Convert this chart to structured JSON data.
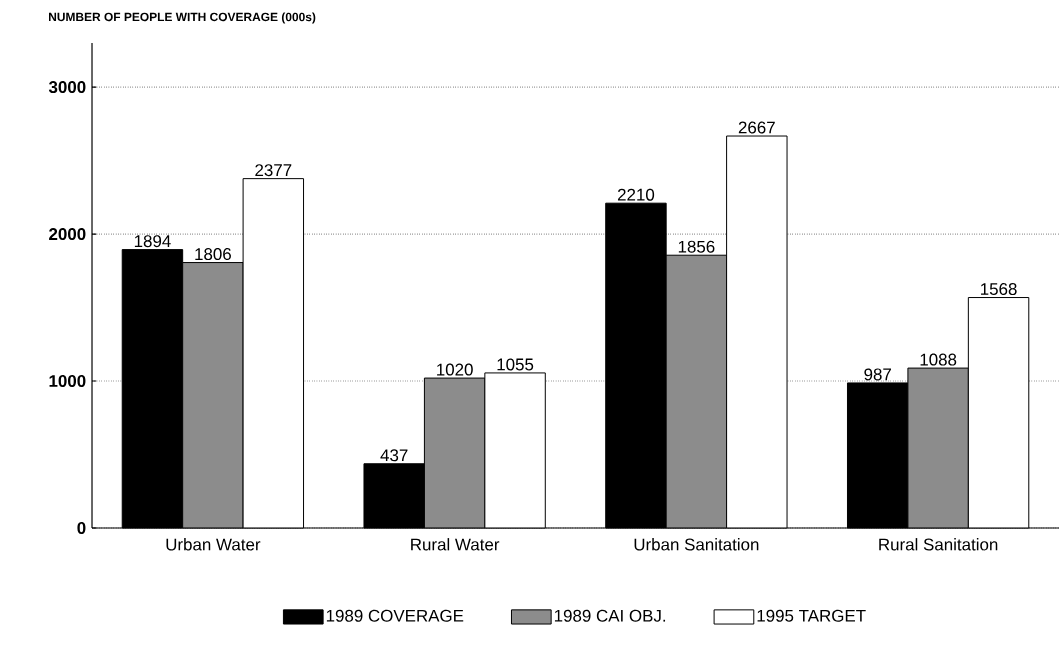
{
  "chart_data": {
    "type": "bar",
    "ylabel": "NUMBER OF PEOPLE WITH COVERAGE (000s)",
    "categories": [
      "Urban Water",
      "Rural Water",
      "Urban Sanitation",
      "Rural Sanitation"
    ],
    "series": [
      {
        "name": "1989 COVERAGE",
        "color": "#000000",
        "values": [
          1894,
          437,
          2210,
          987
        ]
      },
      {
        "name": "1989 CAI OBJ.",
        "color": "#8c8c8c",
        "values": [
          1806,
          1020,
          1856,
          1088
        ]
      },
      {
        "name": "1995 TARGET",
        "color": "#ffffff",
        "values": [
          2377,
          1055,
          2667,
          1568
        ]
      }
    ],
    "ylim": [
      0,
      3300
    ],
    "yticks": [
      0,
      1000,
      2000,
      3000
    ],
    "grid": "y",
    "legend": "bottom",
    "data_labels": true
  }
}
